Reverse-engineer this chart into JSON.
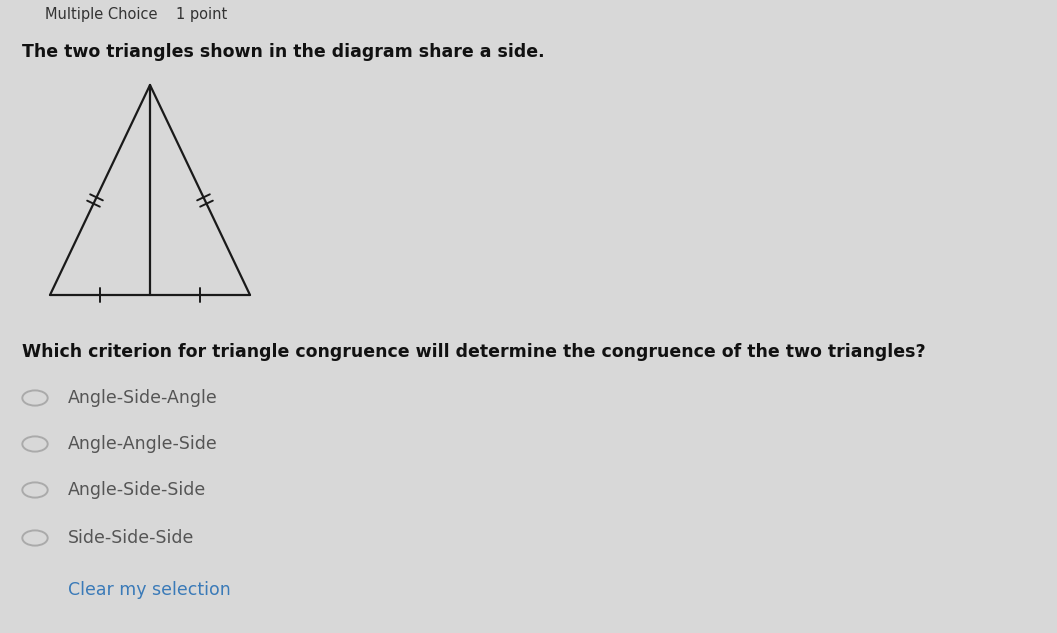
{
  "bg_color": "#d8d8d8",
  "header_bar_color": "#1a1a1a",
  "header_text": "Multiple Choice    1 point",
  "header_fontsize": 10.5,
  "question_line1": "The two triangles shown in the diagram share a side.",
  "question_line2": "Which criterion for triangle congruence will determine the congruence of the two triangles?",
  "question_fontsize": 12.5,
  "options": [
    "Angle-Side-Angle",
    "Angle-Angle-Side",
    "Angle-Side-Side",
    "Side-Side-Side"
  ],
  "options_fontsize": 12.5,
  "clear_text": "Clear my selection",
  "clear_color": "#3a7ab8",
  "clear_fontsize": 12.5,
  "triangle_color": "#1a1a1a",
  "figsize": [
    10.57,
    6.33
  ],
  "dpi": 100
}
